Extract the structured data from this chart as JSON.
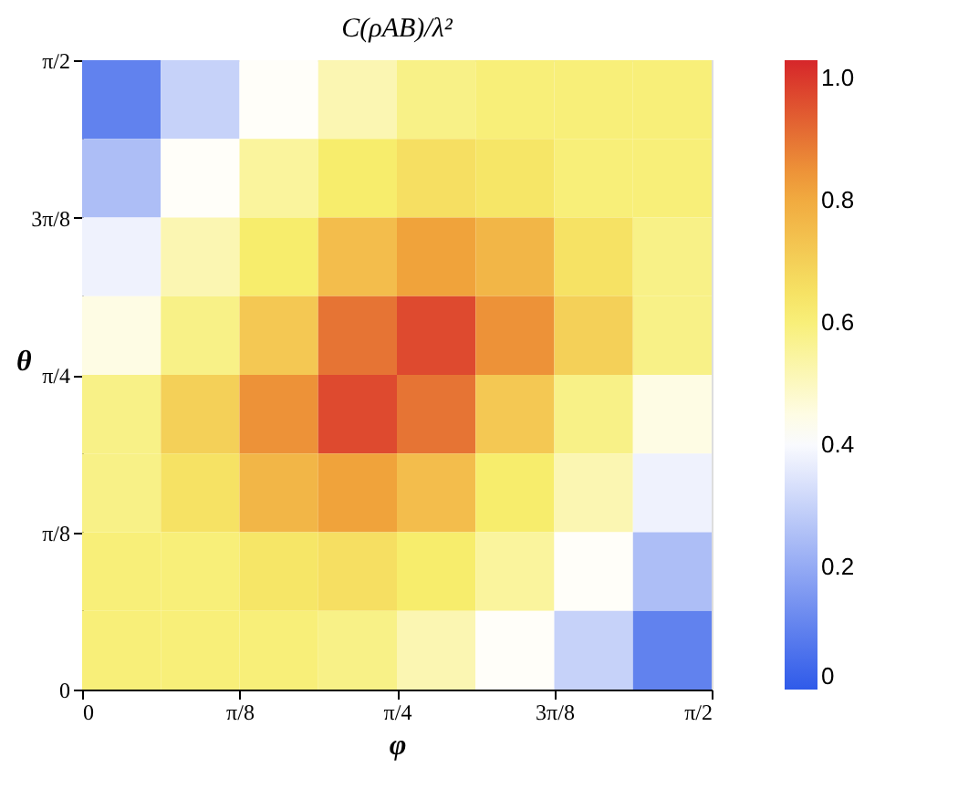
{
  "chart_data": {
    "type": "heatmap",
    "title": "C(ρAB)/λ²",
    "xlabel": "φ",
    "ylabel": "θ",
    "xlim": [
      0,
      1.5708
    ],
    "ylim": [
      0,
      1.5708
    ],
    "xticks": [
      0,
      {
        "value": 0.3927,
        "label": "π/8"
      },
      {
        "value": 0.7854,
        "label": "π/4"
      },
      {
        "value": 1.1781,
        "label": "3π/8"
      },
      {
        "value": 1.5708,
        "label": "π/2"
      }
    ],
    "yticks": [
      0,
      {
        "value": 0.3927,
        "label": "π/8"
      },
      {
        "value": 0.7854,
        "label": "π/4"
      },
      {
        "value": 1.1781,
        "label": "3π/8"
      },
      {
        "value": 1.5708,
        "label": "π/2"
      }
    ],
    "cells": [
      [
        0.1,
        0.3,
        0.42,
        0.52,
        0.58,
        0.6,
        0.6,
        0.6
      ],
      [
        0.25,
        0.42,
        0.55,
        0.62,
        0.66,
        0.64,
        0.6,
        0.6
      ],
      [
        0.38,
        0.52,
        0.62,
        0.75,
        0.82,
        0.77,
        0.65,
        0.58
      ],
      [
        0.45,
        0.58,
        0.72,
        0.9,
        0.97,
        0.85,
        0.7,
        0.58
      ],
      [
        0.58,
        0.7,
        0.85,
        0.97,
        0.9,
        0.72,
        0.58,
        0.45
      ],
      [
        0.58,
        0.65,
        0.77,
        0.82,
        0.75,
        0.62,
        0.52,
        0.38
      ],
      [
        0.6,
        0.6,
        0.64,
        0.66,
        0.62,
        0.55,
        0.42,
        0.25
      ],
      [
        0.6,
        0.6,
        0.6,
        0.58,
        0.52,
        0.42,
        0.3,
        0.1
      ]
    ],
    "clim": [
      0,
      1.03
    ],
    "cticks": [
      0,
      0.2,
      0.4,
      0.6,
      0.8,
      {
        "value": 1,
        "label": "1.0"
      }
    ],
    "grid": false
  }
}
